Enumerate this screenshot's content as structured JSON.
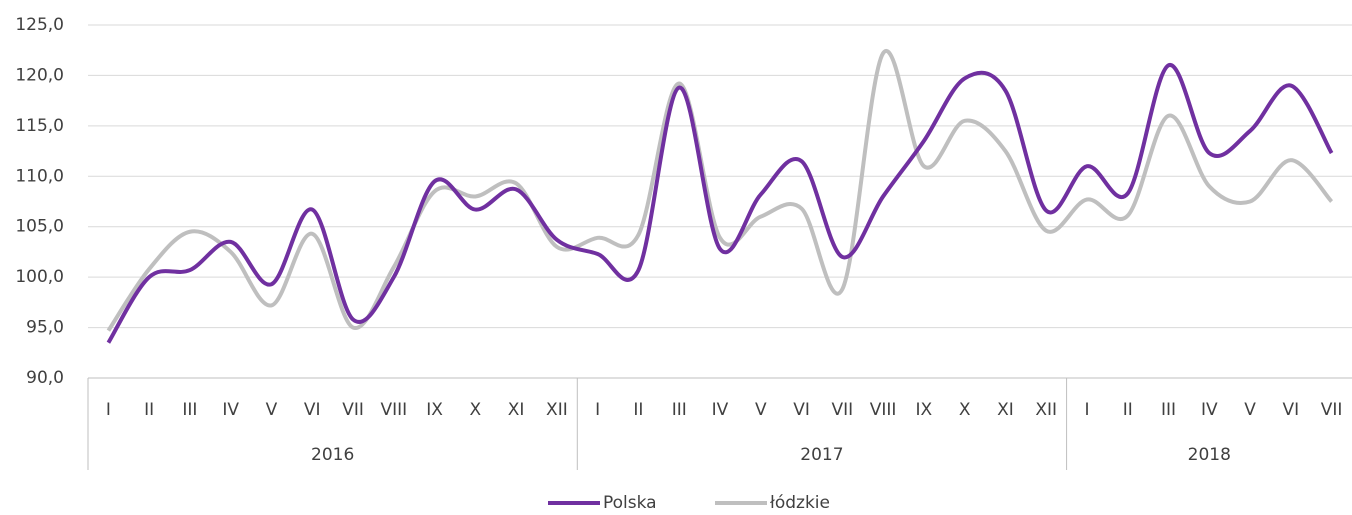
{
  "chart_data": {
    "type": "line",
    "groups": [
      {
        "label": "2016",
        "categories": [
          "I",
          "II",
          "III",
          "IV",
          "V",
          "VI",
          "VII",
          "VIII",
          "IX",
          "X",
          "XI",
          "XII"
        ]
      },
      {
        "label": "2017",
        "categories": [
          "I",
          "II",
          "III",
          "IV",
          "V",
          "VI",
          "VII",
          "VIII",
          "IX",
          "X",
          "XI",
          "XII"
        ]
      },
      {
        "label": "2018",
        "categories": [
          "I",
          "II",
          "III",
          "IV",
          "V",
          "VI",
          "VII"
        ]
      }
    ],
    "series": [
      {
        "name": "Polska",
        "color": "#7030a0",
        "values": [
          93.5,
          100,
          100.7,
          103.5,
          99.3,
          106.7,
          95.8,
          100,
          109.5,
          106.7,
          108.7,
          103.7,
          102.3,
          100.7,
          118.8,
          102.8,
          108.2,
          111.5,
          102,
          108,
          113.5,
          119.7,
          118.5,
          106.6,
          111,
          108.3,
          121,
          112.3,
          114.5,
          119,
          112.3
        ]
      },
      {
        "name": "łódzkie",
        "color": "#bfbfbf",
        "values": [
          94.7,
          100.8,
          104.5,
          102.5,
          97.2,
          104.3,
          95,
          101,
          108.5,
          108,
          109.3,
          103,
          103.9,
          104.2,
          119.2,
          103.9,
          106,
          106.8,
          98.8,
          122.2,
          111,
          115.5,
          112.5,
          104.6,
          107.7,
          106.1,
          116,
          109,
          107.5,
          111.6,
          107.5
        ]
      }
    ],
    "ylim": [
      90,
      125
    ],
    "yticks": [
      {
        "value": 90,
        "label": "90,0"
      },
      {
        "value": 95,
        "label": "95,0"
      },
      {
        "value": 100,
        "label": "100,0"
      },
      {
        "value": 105,
        "label": "105,0"
      },
      {
        "value": 110,
        "label": "110,0"
      },
      {
        "value": 115,
        "label": "115,0"
      },
      {
        "value": 120,
        "label": "120,0"
      },
      {
        "value": 125,
        "label": "125,0"
      }
    ],
    "grid": true,
    "legend": "bottom"
  }
}
